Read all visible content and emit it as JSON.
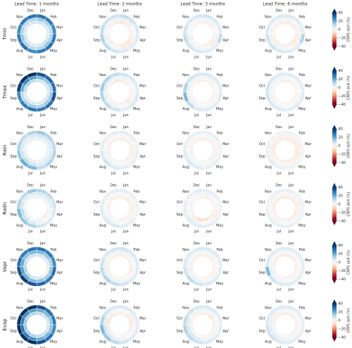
{
  "chart_data": {
    "type": "polar-heatmap",
    "column_titles": [
      "Lead Time: 1 months",
      "Lead Time: 2 months",
      "Lead Time: 3 months",
      "Lead Time: 6 months"
    ],
    "row_labels": [
      "Tmin",
      "Tmax",
      "Rain",
      "Radn",
      "Vapr",
      "Evap"
    ],
    "categories": [
      "Jan",
      "Feb",
      "Mar",
      "Apr",
      "May",
      "Jun",
      "Jul",
      "Aug",
      "Sep",
      "Oct",
      "Nov",
      "Dec"
    ],
    "colorbar": {
      "label": "CRPS skill (%)",
      "vlim": [
        -40,
        40
      ],
      "ticks": [
        40,
        20,
        0,
        {
          "value": -20,
          "label": "−20"
        },
        {
          "value": -40,
          "label": "−40"
        }
      ],
      "colors": [
        "#67001f",
        "#b2182b",
        "#d6604d",
        "#f4a582",
        "#fddbc7",
        "#f7f7f7",
        "#d1e5f0",
        "#92c5de",
        "#4393c3",
        "#2166ac",
        "#053061"
      ],
      "extend": "both"
    },
    "panels": [
      [
        [
          [
            8,
            6,
            5,
            6,
            8,
            6,
            5,
            6,
            8,
            6,
            5,
            8
          ],
          [
            15,
            12,
            10,
            12,
            15,
            12,
            10,
            12,
            15,
            12,
            10,
            12
          ],
          [
            30,
            28,
            25,
            28,
            30,
            28,
            25,
            30,
            28,
            25,
            28,
            30
          ]
        ],
        [
          [
            -5,
            -3,
            -2,
            -3,
            -5,
            -4,
            -2,
            -3,
            -2,
            0,
            -2,
            -3
          ],
          [
            3,
            2,
            0,
            -2,
            -4,
            -3,
            0,
            2,
            3,
            2,
            1,
            2
          ],
          [
            10,
            8,
            6,
            5,
            4,
            6,
            8,
            10,
            12,
            10,
            8,
            8
          ]
        ],
        [
          [
            -3,
            -2,
            0,
            -2,
            -3,
            -2,
            0,
            -1,
            -2,
            0,
            -1,
            -2
          ],
          [
            2,
            1,
            0,
            -2,
            -2,
            0,
            1,
            2,
            3,
            1,
            0,
            1
          ],
          [
            8,
            6,
            5,
            10,
            4,
            5,
            6,
            8,
            10,
            8,
            6,
            7
          ]
        ],
        [
          [
            -4,
            -3,
            -2,
            -3,
            -4,
            -3,
            -2,
            -3,
            -2,
            -1,
            -2,
            -3
          ],
          [
            2,
            0,
            -2,
            -3,
            -2,
            0,
            1,
            2,
            2,
            1,
            0,
            1
          ],
          [
            6,
            5,
            4,
            12,
            4,
            5,
            6,
            8,
            8,
            6,
            5,
            6
          ]
        ]
      ],
      [
        [
          [
            8,
            6,
            5,
            6,
            6,
            5,
            6,
            5,
            5,
            10,
            12,
            10
          ],
          [
            18,
            15,
            12,
            15,
            14,
            12,
            14,
            12,
            10,
            20,
            25,
            22
          ],
          [
            35,
            32,
            30,
            35,
            30,
            28,
            30,
            28,
            25,
            38,
            45,
            40
          ]
        ],
        [
          [
            -3,
            -2,
            -1,
            -2,
            -3,
            -2,
            -1,
            -2,
            -1,
            0,
            -2,
            -5
          ],
          [
            2,
            1,
            0,
            -1,
            -2,
            0,
            1,
            2,
            3,
            4,
            3,
            2
          ],
          [
            8,
            6,
            5,
            6,
            5,
            4,
            8,
            10,
            12,
            14,
            12,
            10
          ]
        ],
        [
          [
            -2,
            -2,
            -1,
            -2,
            -2,
            -1,
            0,
            -1,
            -1,
            0,
            -1,
            -2
          ],
          [
            1,
            1,
            0,
            -1,
            -1,
            0,
            1,
            2,
            2,
            3,
            2,
            1
          ],
          [
            6,
            5,
            4,
            5,
            4,
            5,
            6,
            10,
            18,
            12,
            8,
            6
          ]
        ],
        [
          [
            -2,
            -2,
            -1,
            -2,
            -2,
            -1,
            0,
            -1,
            -1,
            0,
            -1,
            -2
          ],
          [
            1,
            0,
            0,
            -1,
            -1,
            0,
            1,
            1,
            2,
            2,
            1,
            1
          ],
          [
            5,
            4,
            4,
            5,
            4,
            4,
            5,
            6,
            8,
            8,
            6,
            5
          ]
        ]
      ],
      [
        [
          [
            3,
            2,
            2,
            3,
            3,
            2,
            3,
            4,
            3,
            2,
            2,
            3
          ],
          [
            8,
            6,
            5,
            6,
            6,
            5,
            8,
            10,
            8,
            6,
            5,
            6
          ],
          [
            15,
            12,
            10,
            12,
            12,
            10,
            18,
            20,
            15,
            12,
            10,
            12
          ]
        ],
        [
          [
            -3,
            -2,
            -2,
            -3,
            -2,
            -1,
            0,
            -1,
            -2,
            -3,
            -2,
            -3
          ],
          [
            0,
            -1,
            -2,
            -2,
            -1,
            0,
            1,
            2,
            1,
            0,
            -1,
            0
          ],
          [
            4,
            3,
            2,
            3,
            3,
            4,
            6,
            8,
            6,
            4,
            3,
            4
          ]
        ],
        [
          [
            -3,
            -2,
            -2,
            -2,
            -2,
            -1,
            0,
            -1,
            -2,
            -2,
            -2,
            -3
          ],
          [
            0,
            -1,
            -1,
            -2,
            -1,
            0,
            1,
            1,
            1,
            0,
            -1,
            0
          ],
          [
            3,
            3,
            2,
            2,
            3,
            3,
            5,
            6,
            5,
            3,
            3,
            3
          ]
        ],
        [
          [
            -4,
            -4,
            -3,
            -4,
            -3,
            -3,
            -2,
            -2,
            -3,
            -4,
            -3,
            -4
          ],
          [
            -2,
            -2,
            -3,
            -3,
            -2,
            -1,
            0,
            -1,
            -2,
            -2,
            -2,
            -2
          ],
          [
            2,
            1,
            0,
            1,
            1,
            2,
            3,
            4,
            3,
            2,
            1,
            2
          ]
        ]
      ],
      [
        [
          [
            2,
            2,
            1,
            -2,
            -3,
            -2,
            0,
            2,
            3,
            1,
            0,
            2
          ],
          [
            6,
            5,
            4,
            2,
            0,
            2,
            5,
            8,
            10,
            6,
            4,
            5
          ],
          [
            12,
            10,
            8,
            6,
            5,
            8,
            12,
            15,
            18,
            12,
            10,
            15
          ]
        ],
        [
          [
            -3,
            -3,
            -2,
            -3,
            -2,
            -2,
            0,
            -1,
            -2,
            -3,
            -2,
            -3
          ],
          [
            0,
            -1,
            -2,
            -2,
            -1,
            0,
            1,
            2,
            1,
            0,
            -1,
            0
          ],
          [
            4,
            3,
            2,
            2,
            3,
            4,
            6,
            6,
            5,
            4,
            3,
            4
          ]
        ],
        [
          [
            -2,
            -2,
            -1,
            -2,
            -3,
            -6,
            -8,
            -3,
            -2,
            -2,
            -1,
            -2
          ],
          [
            1,
            0,
            -1,
            -2,
            -2,
            0,
            1,
            2,
            1,
            0,
            0,
            1
          ],
          [
            4,
            3,
            2,
            2,
            3,
            4,
            5,
            5,
            4,
            3,
            3,
            4
          ]
        ],
        [
          [
            -4,
            -3,
            -3,
            -4,
            -3,
            -3,
            -2,
            -2,
            -3,
            -4,
            -3,
            -4
          ],
          [
            -1,
            -1,
            -2,
            -2,
            -1,
            0,
            0,
            -1,
            -1,
            -1,
            -1,
            -1
          ],
          [
            3,
            2,
            2,
            2,
            2,
            3,
            4,
            3,
            3,
            2,
            2,
            3
          ]
        ]
      ],
      [
        [
          [
            8,
            6,
            5,
            -3,
            -2,
            6,
            8,
            10,
            12,
            10,
            8,
            8
          ],
          [
            18,
            15,
            12,
            15,
            14,
            16,
            18,
            20,
            22,
            20,
            16,
            18
          ],
          [
            30,
            28,
            25,
            30,
            28,
            32,
            35,
            38,
            35,
            30,
            28,
            30
          ]
        ],
        [
          [
            -3,
            -3,
            -2,
            -3,
            -2,
            -1,
            0,
            -1,
            -2,
            -3,
            -2,
            -3
          ],
          [
            2,
            1,
            0,
            -1,
            -1,
            1,
            2,
            3,
            4,
            2,
            1,
            2
          ],
          [
            8,
            6,
            5,
            5,
            5,
            8,
            10,
            12,
            10,
            8,
            6,
            8
          ]
        ],
        [
          [
            -3,
            -2,
            -2,
            -2,
            -2,
            -1,
            0,
            -1,
            -2,
            -2,
            -2,
            -3
          ],
          [
            1,
            1,
            0,
            -1,
            -1,
            1,
            2,
            2,
            3,
            2,
            1,
            1
          ],
          [
            6,
            5,
            4,
            4,
            5,
            6,
            8,
            10,
            8,
            6,
            5,
            6
          ]
        ],
        [
          [
            -3,
            -3,
            -2,
            -3,
            -2,
            -2,
            -1,
            -1,
            -2,
            -3,
            -2,
            -3
          ],
          [
            1,
            0,
            0,
            -1,
            -1,
            0,
            1,
            2,
            3,
            1,
            0,
            1
          ],
          [
            5,
            4,
            4,
            4,
            4,
            5,
            6,
            8,
            18,
            6,
            5,
            5
          ]
        ]
      ],
      [
        [
          [
            10,
            8,
            6,
            6,
            8,
            10,
            12,
            14,
            15,
            14,
            12,
            12
          ],
          [
            20,
            18,
            15,
            15,
            18,
            20,
            25,
            28,
            30,
            28,
            25,
            22
          ],
          [
            35,
            30,
            28,
            25,
            30,
            35,
            40,
            42,
            40,
            45,
            45,
            40
          ]
        ],
        [
          [
            -3,
            -3,
            -4,
            -3,
            -2,
            -1,
            0,
            -2,
            -3,
            -5,
            -4,
            -3
          ],
          [
            0,
            -1,
            -2,
            -1,
            0,
            2,
            4,
            6,
            8,
            4,
            2,
            0
          ],
          [
            6,
            5,
            4,
            4,
            5,
            8,
            10,
            15,
            18,
            12,
            8,
            6
          ]
        ],
        [
          [
            -2,
            -5,
            -3,
            -2,
            -1,
            -1,
            0,
            -1,
            -2,
            -2,
            -2,
            -2
          ],
          [
            2,
            1,
            0,
            0,
            1,
            2,
            4,
            6,
            6,
            4,
            2,
            2
          ],
          [
            6,
            5,
            4,
            4,
            5,
            6,
            8,
            10,
            12,
            10,
            8,
            6
          ]
        ],
        [
          [
            -3,
            -3,
            -2,
            -2,
            -2,
            -1,
            0,
            -1,
            -2,
            -3,
            -3,
            -3
          ],
          [
            1,
            0,
            0,
            0,
            1,
            2,
            3,
            4,
            4,
            3,
            2,
            1
          ],
          [
            5,
            4,
            3,
            3,
            4,
            5,
            6,
            8,
            8,
            6,
            5,
            5
          ]
        ]
      ]
    ]
  }
}
